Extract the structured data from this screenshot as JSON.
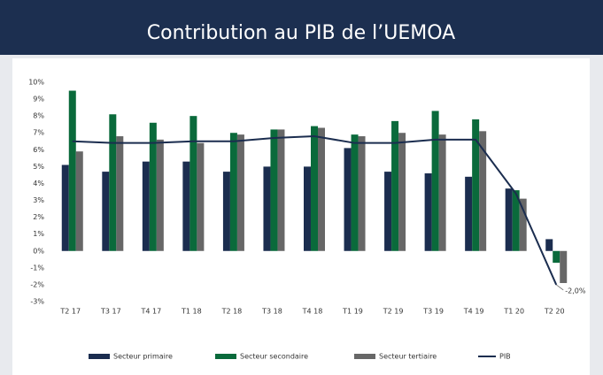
{
  "chart_data": {
    "type": "bar",
    "title": "Contribution au PIB de l’UEMOA",
    "categories": [
      "T2 17",
      "T3 17",
      "T4 17",
      "T1 18",
      "T2 18",
      "T3 18",
      "T4 18",
      "T1 19",
      "T2 19",
      "T3 19",
      "T4 19",
      "T1 20",
      "T2 20"
    ],
    "series": [
      {
        "name": "Secteur primaire",
        "color": "#1b2d4f",
        "values": [
          5.1,
          4.7,
          5.3,
          5.3,
          4.7,
          5.0,
          5.0,
          6.1,
          4.7,
          4.6,
          4.4,
          3.7,
          0.7
        ]
      },
      {
        "name": "Secteur secondaire",
        "color": "#0a6a3b",
        "values": [
          9.5,
          8.1,
          7.6,
          8.0,
          7.0,
          7.2,
          7.4,
          6.9,
          7.7,
          8.3,
          7.8,
          3.6,
          -0.7
        ]
      },
      {
        "name": "Secteur tertiaire",
        "color": "#676767",
        "values": [
          5.9,
          6.8,
          6.6,
          6.4,
          6.9,
          7.2,
          7.3,
          6.8,
          7.0,
          6.9,
          7.1,
          3.1,
          -1.9
        ]
      },
      {
        "name": "PIB",
        "type": "line",
        "color": "#1b2d4f",
        "values": [
          6.5,
          6.4,
          6.4,
          6.5,
          6.5,
          6.7,
          6.8,
          6.4,
          6.4,
          6.6,
          6.6,
          3.4,
          -2.0
        ],
        "value_labels": [
          null,
          null,
          null,
          null,
          null,
          null,
          null,
          null,
          null,
          null,
          null,
          null,
          "-2,0%"
        ]
      }
    ],
    "ylim": [
      -3,
      10
    ],
    "yticks": [
      {
        "value": -3,
        "label": "-3%"
      },
      {
        "value": -2,
        "label": "-2%"
      },
      {
        "value": -1,
        "label": "-1%"
      },
      {
        "value": 0,
        "label": "0%"
      },
      {
        "value": 1,
        "label": "1%"
      },
      {
        "value": 2,
        "label": "2%"
      },
      {
        "value": 3,
        "label": "3%"
      },
      {
        "value": 4,
        "label": "4%"
      },
      {
        "value": 5,
        "label": "5%"
      },
      {
        "value": 6,
        "label": "6%"
      },
      {
        "value": 7,
        "label": "7%"
      },
      {
        "value": 8,
        "label": "8%"
      },
      {
        "value": 9,
        "label": "9%"
      },
      {
        "value": 10,
        "label": "10%"
      }
    ],
    "grid": false,
    "legend": "bottom"
  }
}
